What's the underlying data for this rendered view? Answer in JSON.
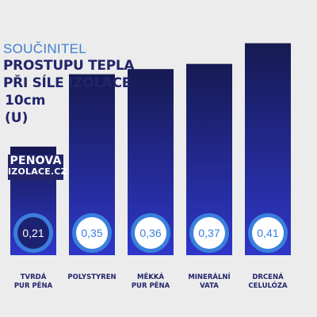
{
  "title": {
    "line1": "SOUČINITEL",
    "line2": "PROSTUPU TEPLA",
    "line3": "PŘI SÍLE IZOLACE",
    "line4": "10cm",
    "line5": "(U)"
  },
  "brand": {
    "line1": "PENOVA",
    "line2": "IZOLACE.CZ"
  },
  "colors": {
    "bar_top": "#161a52",
    "bar_bottom": "#2e37c8",
    "circle_ring": "#3a7fdc",
    "circle_fill": "#ffffff",
    "circle_fill_highlight": "#1d2270",
    "value_text": "#3a7fdc",
    "value_text_highlight": "#ffffff",
    "label_text": "#23256b"
  },
  "chart_data": {
    "type": "bar",
    "categories": [
      [
        "TVRDÁ",
        "PUR PĚNA"
      ],
      [
        "POLYSTYREN"
      ],
      [
        "MĚKKÁ",
        "PUR PĚNA"
      ],
      [
        "MINERÁLNÍ",
        "VATA"
      ],
      [
        "DRCENÁ",
        "CELULÓZA"
      ]
    ],
    "values": [
      0.21,
      0.35,
      0.36,
      0.37,
      0.41
    ],
    "value_labels": [
      "0,21",
      "0,35",
      "0,36",
      "0,37",
      "0,41"
    ],
    "highlight_index": 0,
    "ylim": [
      0,
      0.42
    ],
    "grid": false,
    "legend": "none"
  }
}
